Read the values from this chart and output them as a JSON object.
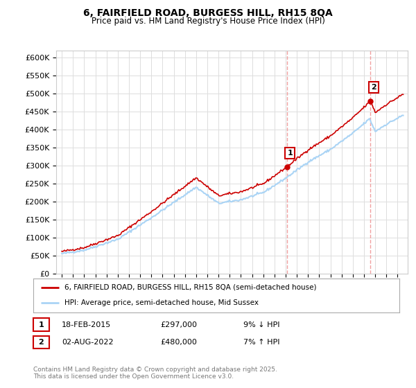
{
  "title1": "6, FAIRFIELD ROAD, BURGESS HILL, RH15 8QA",
  "title2": "Price paid vs. HM Land Registry's House Price Index (HPI)",
  "ylim": [
    0,
    620000
  ],
  "yticks": [
    0,
    50000,
    100000,
    150000,
    200000,
    250000,
    300000,
    350000,
    400000,
    450000,
    500000,
    550000,
    600000
  ],
  "ytick_labels": [
    "£0",
    "£50K",
    "£100K",
    "£150K",
    "£200K",
    "£250K",
    "£300K",
    "£350K",
    "£400K",
    "£450K",
    "£500K",
    "£550K",
    "£600K"
  ],
  "hpi_color": "#aad4f5",
  "price_color": "#cc0000",
  "dashed_color": "#f0a0a0",
  "sale1_year": 2015.134,
  "sale1_price": 297000,
  "sale2_year": 2022.586,
  "sale2_price": 480000,
  "annotation1_label": "1",
  "annotation2_label": "2",
  "legend1": "6, FAIRFIELD ROAD, BURGESS HILL, RH15 8QA (semi-detached house)",
  "legend2": "HPI: Average price, semi-detached house, Mid Sussex",
  "table_row1": [
    "1",
    "18-FEB-2015",
    "£297,000",
    "9% ↓ HPI"
  ],
  "table_row2": [
    "2",
    "02-AUG-2022",
    "£480,000",
    "7% ↑ HPI"
  ],
  "footer": "Contains HM Land Registry data © Crown copyright and database right 2025.\nThis data is licensed under the Open Government Licence v3.0.",
  "hpi_milestones_year": [
    1995,
    1997,
    2000,
    2003,
    2007,
    2009,
    2011,
    2013,
    2015,
    2017,
    2019,
    2021,
    2022.5,
    2023,
    2024,
    2025.5
  ],
  "hpi_milestones_val": [
    55000,
    65000,
    95000,
    155000,
    240000,
    195000,
    205000,
    225000,
    265000,
    310000,
    345000,
    390000,
    430000,
    395000,
    415000,
    440000
  ],
  "background_color": "#ffffff",
  "grid_color": "#dddddd"
}
